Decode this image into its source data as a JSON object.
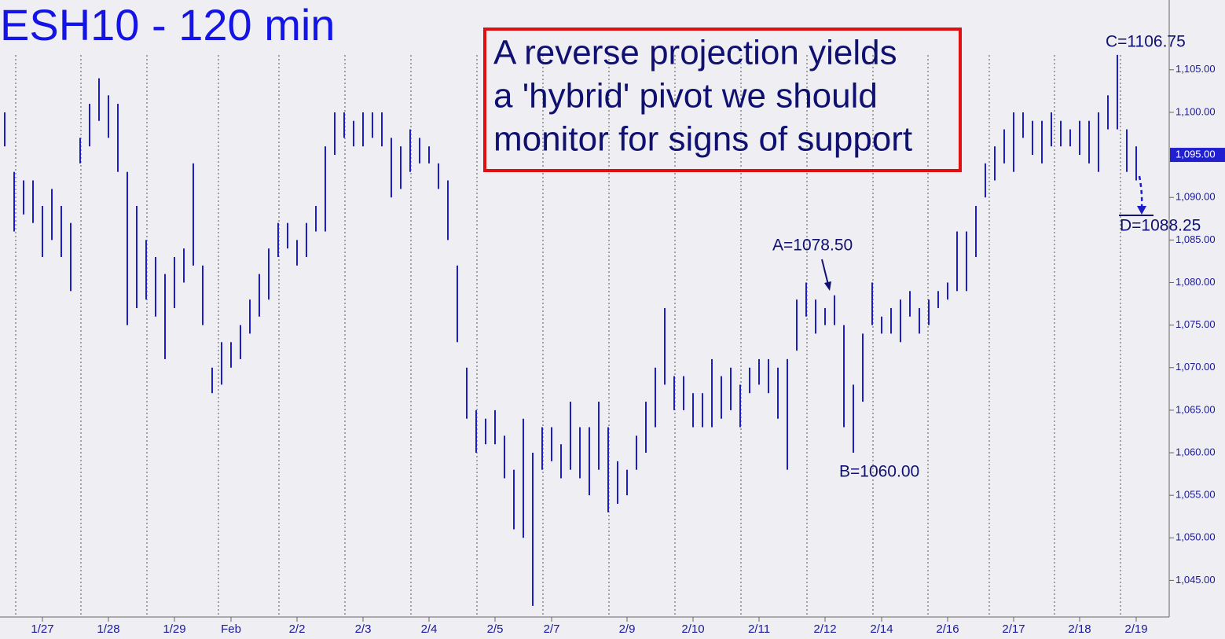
{
  "chart_data": {
    "type": "hilo",
    "title": "ESH10 - 120 min",
    "callout": [
      "A reverse projection yields",
      "a 'hybrid' pivot we should",
      "monitor for signs of support"
    ],
    "annotations": [
      "A=1078.50",
      "B=1060.00",
      "C=1106.75",
      "D=1088.25"
    ],
    "color": "#1c1cc8",
    "ylim": [
      1040.7,
      1113.2
    ],
    "yticks": [
      {
        "value": 1045,
        "label": "1,045.00"
      },
      {
        "value": 1050,
        "label": "1,050.00"
      },
      {
        "value": 1055,
        "label": "1,055.00"
      },
      {
        "value": 1060,
        "label": "1,060.00"
      },
      {
        "value": 1065,
        "label": "1,065.00"
      },
      {
        "value": 1070,
        "label": "1,070.00"
      },
      {
        "value": 1075,
        "label": "1,075.00"
      },
      {
        "value": 1080,
        "label": "1,080.00"
      },
      {
        "value": 1085,
        "label": "1,085.00"
      },
      {
        "value": 1090,
        "label": "1,090.00"
      },
      {
        "value": 1100,
        "label": "1,100.00"
      },
      {
        "value": 1105,
        "label": "1,105.00"
      }
    ],
    "last_price": {
      "value": 1095,
      "label": "1,095.00"
    },
    "categories": [
      null,
      null,
      null,
      null,
      "1/27",
      null,
      null,
      null,
      null,
      null,
      null,
      "1/28",
      null,
      null,
      null,
      null,
      null,
      null,
      "1/29",
      null,
      null,
      null,
      null,
      null,
      "Feb",
      null,
      null,
      null,
      null,
      null,
      null,
      "2/2",
      null,
      null,
      null,
      null,
      null,
      null,
      "2/3",
      null,
      null,
      null,
      null,
      null,
      null,
      "2/4",
      null,
      null,
      null,
      null,
      null,
      null,
      "2/5",
      null,
      null,
      null,
      null,
      null,
      "2/7",
      null,
      null,
      null,
      null,
      null,
      null,
      null,
      "2/9",
      null,
      null,
      null,
      null,
      null,
      null,
      "2/10",
      null,
      null,
      null,
      null,
      null,
      null,
      "2/11",
      null,
      null,
      null,
      null,
      null,
      null,
      "2/12",
      null,
      null,
      null,
      null,
      null,
      "2/14",
      null,
      null,
      null,
      null,
      null,
      null,
      "2/16",
      null,
      null,
      null,
      null,
      null,
      null,
      "2/17",
      null,
      null,
      null,
      null,
      null,
      null,
      "2/18",
      null,
      null,
      null,
      null,
      null,
      "2/19"
    ],
    "high": [
      1100,
      1093,
      1092,
      1092,
      1089,
      1091,
      1089,
      1087,
      1097,
      1101,
      1104,
      1102,
      1101,
      1093,
      1089,
      1085,
      1083,
      1081,
      1083,
      1084,
      1094,
      1082,
      1070,
      1073,
      1073,
      1075,
      1078,
      1081,
      1084,
      1087,
      1087,
      1085,
      1087,
      1089,
      1096,
      1100,
      1100,
      1099,
      1100,
      1100,
      1100,
      1097,
      1096,
      1098,
      1097,
      1096,
      1094,
      1092,
      1082,
      1070,
      1065,
      1064,
      1065,
      1062,
      1058,
      1064,
      1060,
      1063,
      1063,
      1061,
      1066,
      1063,
      1063,
      1066,
      1063,
      1059,
      1058,
      1062,
      1066,
      1070,
      1077,
      1069,
      1069,
      1067,
      1067,
      1071,
      1069,
      1070,
      1068,
      1070,
      1071,
      1071,
      1070,
      1071,
      1078,
      1080,
      1078,
      1077,
      1078.5,
      1075,
      1068,
      1074,
      1080,
      1076,
      1077,
      1078,
      1079,
      1077,
      1078,
      1079,
      1080,
      1086,
      1086,
      1089,
      1094,
      1096,
      1098,
      1100,
      1100,
      1099,
      1099,
      1100,
      1099,
      1098,
      1099,
      1099,
      1100,
      1102,
      1106.75,
      1098,
      1096
    ],
    "low": [
      1096,
      1086,
      1088,
      1087,
      1083,
      1085,
      1083,
      1079,
      1094,
      1096,
      1099,
      1097,
      1093,
      1075,
      1077,
      1078,
      1076,
      1071,
      1077,
      1080,
      1082,
      1075,
      1067,
      1068,
      1070,
      1071,
      1074,
      1076,
      1078,
      1083,
      1084,
      1082,
      1083,
      1086,
      1086,
      1095,
      1097,
      1096,
      1096,
      1097,
      1096,
      1090,
      1091,
      1093,
      1094,
      1094,
      1091,
      1085,
      1073,
      1064,
      1060,
      1061,
      1061,
      1057,
      1051,
      1050,
      1042,
      1058,
      1059,
      1057,
      1058,
      1057,
      1055,
      1058,
      1053,
      1054,
      1055,
      1058,
      1060,
      1063,
      1068,
      1065,
      1065,
      1063,
      1063,
      1063,
      1064,
      1065,
      1063,
      1067,
      1068,
      1067,
      1064,
      1058,
      1072,
      1076,
      1074,
      1075,
      1075,
      1063,
      1060,
      1066,
      1075,
      1074,
      1074,
      1073,
      1076,
      1074,
      1075,
      1077,
      1078,
      1079,
      1079,
      1083,
      1090,
      1092,
      1094,
      1093,
      1097,
      1095,
      1094,
      1096,
      1096,
      1096,
      1095,
      1094,
      1093,
      1098,
      1098,
      1093,
      1092
    ]
  }
}
